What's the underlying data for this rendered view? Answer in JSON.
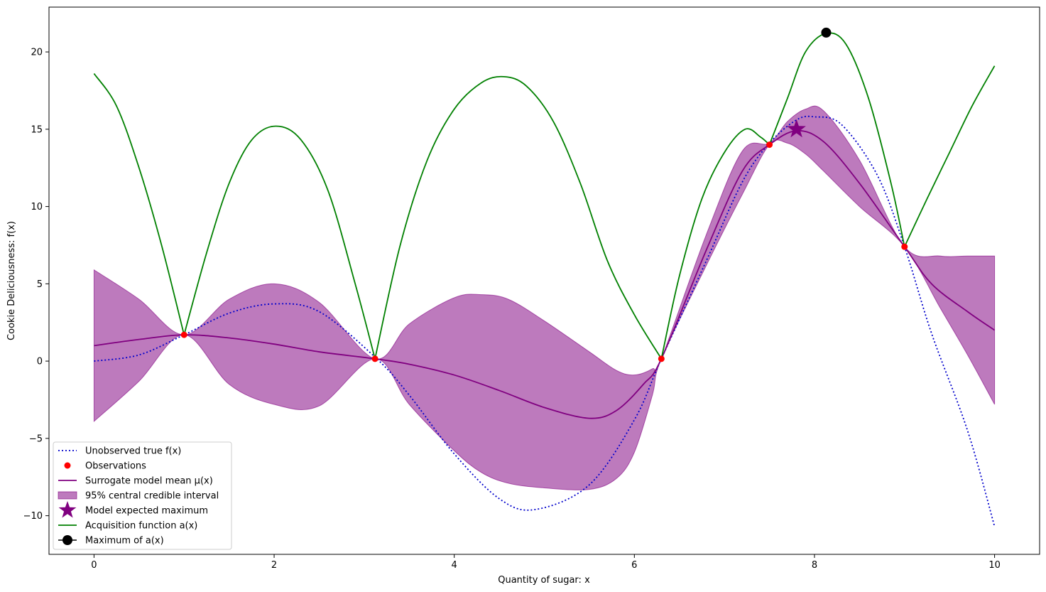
{
  "chart_data": {
    "type": "line",
    "xlabel": "Quantity of sugar: x",
    "ylabel": "Cookie Deliciousness: f(x)",
    "xlim": [
      -0.5,
      10.5
    ],
    "ylim": [
      -12.5,
      22.9
    ],
    "x_ticks": [
      0,
      2,
      4,
      6,
      8,
      10
    ],
    "y_ticks": [
      -10,
      -5,
      0,
      5,
      10,
      15,
      20
    ],
    "legend_position": "lower-left",
    "grid": false,
    "colors": {
      "true_f": "#0000cc",
      "observations": "#ff0000",
      "mean": "#800080",
      "interval": "#800080",
      "expected_max": "#800080",
      "acquisition": "#008000",
      "acq_max": "#000000"
    },
    "legend": [
      {
        "key": "true_f",
        "label": "Unobserved true f(x)"
      },
      {
        "key": "observations",
        "label": "Observations"
      },
      {
        "key": "mean",
        "label": "Surrogate model mean μ(x)"
      },
      {
        "key": "interval",
        "label": "95% central credible interval"
      },
      {
        "key": "expected_max",
        "label": "Model expected maximum"
      },
      {
        "key": "acquisition",
        "label": "Acquisition function a(x)"
      },
      {
        "key": "acq_max",
        "label": "Maximum of a(x)"
      }
    ],
    "series": {
      "true_f": {
        "x": [
          0,
          0.5,
          1,
          1.5,
          2,
          2.5,
          3.14,
          3.5,
          4,
          4.5,
          4.9,
          5.5,
          6,
          6.3,
          6.8,
          7.2,
          7.5,
          7.8,
          8.0,
          8.3,
          8.7,
          9.0,
          9.3,
          9.7,
          10
        ],
        "y": [
          0,
          0.4,
          1.7,
          3.1,
          3.7,
          3.2,
          0.15,
          -2.2,
          -6.0,
          -8.9,
          -9.6,
          -8.0,
          -3.8,
          0.15,
          6.5,
          11.6,
          14.1,
          15.6,
          15.8,
          15.3,
          12.0,
          7.4,
          1.8,
          -4.5,
          -10.7
        ]
      },
      "observations": {
        "x": [
          1.0,
          3.12,
          6.3,
          7.5,
          9.0
        ],
        "y": [
          1.7,
          0.15,
          0.15,
          14.0,
          7.4
        ]
      },
      "mean": {
        "x": [
          0,
          0.5,
          1,
          1.5,
          2,
          2.5,
          3.12,
          3.5,
          4,
          4.5,
          5,
          5.5,
          5.8,
          6.1,
          6.3,
          6.8,
          7.2,
          7.5,
          7.8,
          8.1,
          8.5,
          9.0,
          9.3,
          9.7,
          10
        ],
        "y": [
          1.0,
          1.4,
          1.7,
          1.5,
          1.1,
          0.6,
          0.15,
          -0.2,
          -0.9,
          -1.9,
          -3.0,
          -3.7,
          -3.2,
          -1.5,
          0.15,
          7.2,
          12.3,
          14.0,
          14.9,
          14.2,
          11.5,
          7.4,
          5.0,
          3.2,
          2.0
        ]
      },
      "interval": {
        "x": [
          0,
          0.5,
          1,
          1.5,
          2,
          2.5,
          3.12,
          3.5,
          4,
          4.3,
          4.6,
          5,
          5.5,
          5.8,
          6.0,
          6.2,
          6.3,
          6.8,
          7.2,
          7.5,
          7.7,
          7.9,
          8.1,
          8.5,
          9.0,
          9.4,
          9.7,
          10
        ],
        "upper": [
          5.9,
          4.0,
          1.7,
          4.0,
          5.0,
          3.8,
          0.15,
          2.4,
          4.1,
          4.3,
          4.0,
          2.6,
          0.6,
          -0.6,
          -0.9,
          -0.5,
          0.15,
          8.2,
          13.6,
          14.1,
          15.5,
          16.3,
          16.2,
          13.0,
          7.4,
          6.8,
          6.8,
          6.8
        ],
        "lower": [
          -3.9,
          -1.3,
          1.7,
          -1.5,
          -2.8,
          -2.9,
          0.15,
          -2.8,
          -5.8,
          -7.2,
          -7.9,
          -8.2,
          -8.3,
          -7.6,
          -5.9,
          -2.2,
          0.15,
          6.2,
          10.8,
          14.0,
          14.1,
          13.4,
          12.3,
          10.0,
          7.4,
          3.4,
          0.4,
          -2.8
        ]
      },
      "expected_max": {
        "x": 7.8,
        "y": 15.0
      },
      "acquisition": {
        "x": [
          0,
          0.25,
          0.5,
          0.75,
          1,
          1.25,
          1.5,
          1.75,
          2.02,
          2.3,
          2.6,
          2.9,
          3.12,
          3.4,
          3.7,
          4.0,
          4.3,
          4.55,
          4.8,
          5.1,
          5.4,
          5.7,
          6.0,
          6.3,
          6.5,
          6.75,
          7.0,
          7.23,
          7.4,
          7.5,
          7.7,
          7.9,
          8.13,
          8.35,
          8.6,
          8.85,
          9.0,
          9.25,
          9.5,
          9.75,
          10
        ],
        "y": [
          18.6,
          16.5,
          12.5,
          7.5,
          1.7,
          7.0,
          11.5,
          14.3,
          15.2,
          14.3,
          11.0,
          5.0,
          0.15,
          7.5,
          13.0,
          16.3,
          18.0,
          18.4,
          17.8,
          15.5,
          11.5,
          6.5,
          3.0,
          0.15,
          5.5,
          10.5,
          13.5,
          15.0,
          14.5,
          14.0,
          17.0,
          20.0,
          21.2,
          20.5,
          17.0,
          11.5,
          7.4,
          10.5,
          13.5,
          16.5,
          19.1
        ]
      },
      "acq_max": {
        "x": 8.13,
        "y": 21.25
      }
    }
  }
}
